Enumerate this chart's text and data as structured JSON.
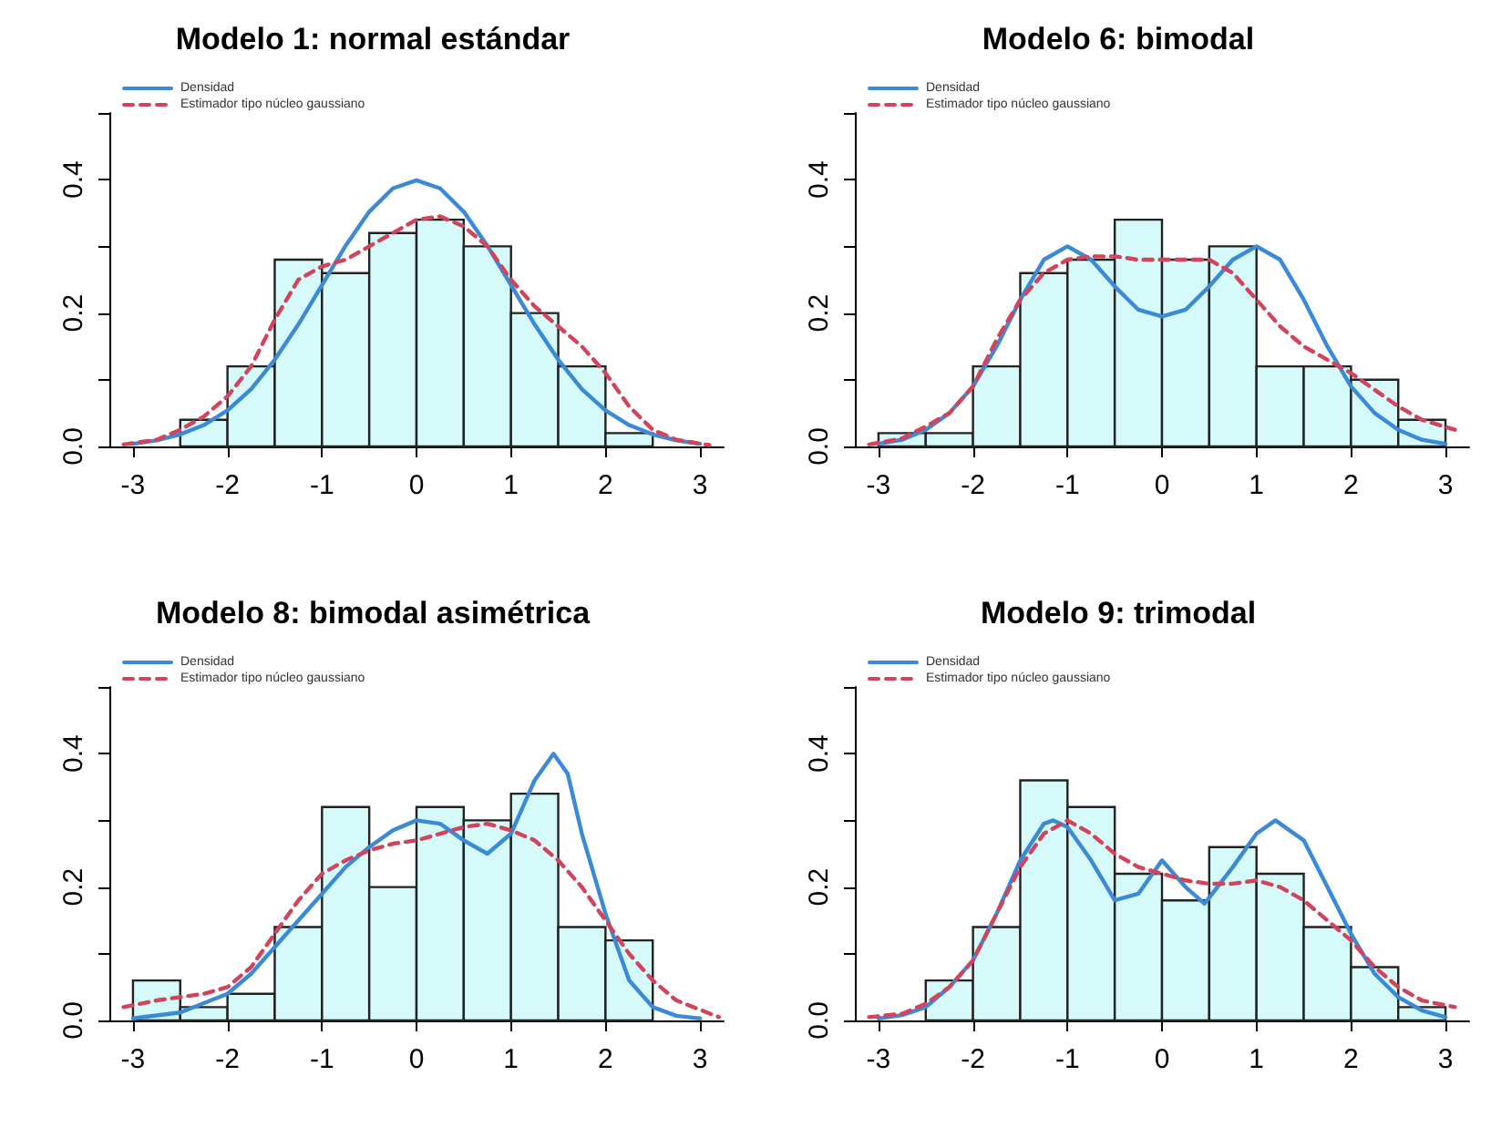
{
  "chart_data": [
    {
      "type": "histogram",
      "title": "Modelo 1: normal estándar",
      "legend": "top left",
      "marker": "none",
      "xlim": [
        -3.25,
        3.25
      ],
      "xticks": [
        -3,
        -2,
        -1,
        0,
        1,
        2,
        3
      ],
      "ylim": [
        0,
        0.5
      ],
      "yticks": [
        {
          "value": 0,
          "label": "0.0"
        },
        {
          "value": 0.1,
          "label": null
        },
        {
          "value": 0.2,
          "label": "0.2"
        },
        {
          "value": 0.3,
          "label": null
        },
        {
          "value": 0.4,
          "label": "0.4"
        },
        {
          "value": 0.5,
          "label": null
        }
      ],
      "series": [
        {
          "type": "histogram",
          "color": "#d6fafa",
          "bins": [
            -2.5,
            -2,
            -1.5,
            -1,
            -0.5,
            0,
            0.5,
            1,
            1.5,
            2,
            2.5
          ],
          "values": [
            0.04,
            0.12,
            0.28,
            0.26,
            0.32,
            0.34,
            0.3,
            0.2,
            0.12,
            0.02
          ]
        },
        {
          "type": "line",
          "name": "Densidad",
          "color": "#3a8ad8",
          "line_style": "solid",
          "x": [
            -3,
            -2.75,
            -2.5,
            -2.25,
            -2,
            -1.75,
            -1.5,
            -1.25,
            -1,
            -0.75,
            -0.5,
            -0.25,
            0,
            0.25,
            0.5,
            0.75,
            1,
            1.25,
            1.5,
            1.75,
            2,
            2.25,
            2.5,
            2.75,
            3
          ],
          "values": [
            0.004,
            0.009,
            0.018,
            0.032,
            0.054,
            0.086,
            0.13,
            0.183,
            0.242,
            0.301,
            0.352,
            0.387,
            0.399,
            0.387,
            0.352,
            0.301,
            0.242,
            0.183,
            0.13,
            0.086,
            0.054,
            0.032,
            0.018,
            0.009,
            0.004
          ]
        },
        {
          "type": "line",
          "name": "Estimador tipo núcleo gaussiano",
          "color": "#d2445c",
          "line_style": "dashed",
          "x": [
            -3.1,
            -2.75,
            -2.5,
            -2.25,
            -2,
            -1.75,
            -1.5,
            -1.25,
            -1,
            -0.75,
            -0.5,
            -0.25,
            0,
            0.25,
            0.5,
            0.75,
            1,
            1.25,
            1.5,
            1.75,
            2,
            2.25,
            2.5,
            2.75,
            3.1
          ],
          "values": [
            0.003,
            0.01,
            0.025,
            0.045,
            0.075,
            0.12,
            0.19,
            0.25,
            0.27,
            0.28,
            0.3,
            0.32,
            0.34,
            0.345,
            0.33,
            0.3,
            0.25,
            0.21,
            0.18,
            0.15,
            0.11,
            0.06,
            0.025,
            0.01,
            0.002
          ]
        }
      ]
    },
    {
      "type": "histogram",
      "title": "Modelo 6: bimodal",
      "legend": "top left",
      "marker": "none",
      "xlim": [
        -3.25,
        3.25
      ],
      "xticks": [
        -3,
        -2,
        -1,
        0,
        1,
        2,
        3
      ],
      "ylim": [
        0,
        0.5
      ],
      "yticks": [
        {
          "value": 0,
          "label": "0.0"
        },
        {
          "value": 0.1,
          "label": null
        },
        {
          "value": 0.2,
          "label": "0.2"
        },
        {
          "value": 0.3,
          "label": null
        },
        {
          "value": 0.4,
          "label": "0.4"
        },
        {
          "value": 0.5,
          "label": null
        }
      ],
      "series": [
        {
          "type": "histogram",
          "color": "#d6fafa",
          "bins": [
            -3,
            -2.5,
            -2,
            -1.5,
            -1,
            -0.5,
            0,
            0.5,
            1,
            1.5,
            2,
            2.5,
            3
          ],
          "values": [
            0.02,
            0.02,
            0.12,
            0.26,
            0.28,
            0.34,
            0.28,
            0.3,
            0.12,
            0.12,
            0.1,
            0.04
          ]
        },
        {
          "type": "line",
          "name": "Densidad",
          "color": "#3a8ad8",
          "line_style": "solid",
          "x": [
            -3,
            -2.75,
            -2.5,
            -2.25,
            -2,
            -1.75,
            -1.5,
            -1.25,
            -1,
            -0.75,
            -0.5,
            -0.25,
            0,
            0.25,
            0.5,
            0.75,
            1,
            1.25,
            1.5,
            1.75,
            2,
            2.25,
            2.5,
            2.75,
            3
          ],
          "values": [
            0.004,
            0.01,
            0.025,
            0.05,
            0.09,
            0.15,
            0.22,
            0.28,
            0.3,
            0.28,
            0.24,
            0.205,
            0.195,
            0.205,
            0.24,
            0.28,
            0.3,
            0.28,
            0.22,
            0.15,
            0.09,
            0.05,
            0.025,
            0.01,
            0.004
          ]
        },
        {
          "type": "line",
          "name": "Estimador tipo núcleo gaussiano",
          "color": "#d2445c",
          "line_style": "dashed",
          "x": [
            -3.1,
            -2.75,
            -2.5,
            -2.25,
            -2,
            -1.75,
            -1.5,
            -1.25,
            -1,
            -0.75,
            -0.5,
            -0.25,
            0,
            0.25,
            0.5,
            0.75,
            1,
            1.25,
            1.5,
            1.75,
            2,
            2.25,
            2.5,
            2.75,
            3.1
          ],
          "values": [
            0.003,
            0.012,
            0.03,
            0.05,
            0.09,
            0.16,
            0.22,
            0.26,
            0.28,
            0.285,
            0.285,
            0.28,
            0.28,
            0.28,
            0.28,
            0.26,
            0.22,
            0.18,
            0.15,
            0.13,
            0.11,
            0.085,
            0.06,
            0.04,
            0.025
          ]
        }
      ]
    },
    {
      "type": "histogram",
      "title": "Modelo 8: bimodal asimétrica",
      "legend": "top left",
      "marker": "none",
      "xlim": [
        -3.25,
        3.25
      ],
      "xticks": [
        -3,
        -2,
        -1,
        0,
        1,
        2,
        3
      ],
      "ylim": [
        0,
        0.5
      ],
      "yticks": [
        {
          "value": 0,
          "label": "0.0"
        },
        {
          "value": 0.1,
          "label": null
        },
        {
          "value": 0.2,
          "label": "0.2"
        },
        {
          "value": 0.3,
          "label": null
        },
        {
          "value": 0.4,
          "label": "0.4"
        },
        {
          "value": 0.5,
          "label": null
        }
      ],
      "series": [
        {
          "type": "histogram",
          "color": "#d6fafa",
          "bins": [
            -3,
            -2.5,
            -2,
            -1.5,
            -1,
            -0.5,
            0,
            0.5,
            1,
            1.5,
            2,
            2.5
          ],
          "values": [
            0.06,
            0.02,
            0.04,
            0.14,
            0.32,
            0.2,
            0.32,
            0.3,
            0.34,
            0.14,
            0.12
          ]
        },
        {
          "type": "line",
          "name": "Densidad",
          "color": "#3a8ad8",
          "line_style": "solid",
          "x": [
            -3,
            -2.5,
            -2,
            -1.75,
            -1.5,
            -1.25,
            -1,
            -0.75,
            -0.5,
            -0.25,
            0,
            0.25,
            0.5,
            0.75,
            1,
            1.25,
            1.45,
            1.6,
            1.75,
            2,
            2.25,
            2.5,
            2.75,
            3
          ],
          "values": [
            0.003,
            0.012,
            0.04,
            0.07,
            0.11,
            0.15,
            0.19,
            0.23,
            0.26,
            0.285,
            0.3,
            0.295,
            0.27,
            0.25,
            0.28,
            0.36,
            0.4,
            0.37,
            0.28,
            0.16,
            0.06,
            0.02,
            0.007,
            0.003
          ]
        },
        {
          "type": "line",
          "name": "Estimador tipo núcleo gaussiano",
          "color": "#d2445c",
          "line_style": "dashed",
          "x": [
            -3.1,
            -2.75,
            -2.5,
            -2.25,
            -2,
            -1.75,
            -1.5,
            -1.25,
            -1,
            -0.75,
            -0.5,
            -0.25,
            0,
            0.25,
            0.5,
            0.75,
            1,
            1.25,
            1.5,
            1.75,
            2,
            2.25,
            2.5,
            2.75,
            3.2
          ],
          "values": [
            0.02,
            0.03,
            0.035,
            0.04,
            0.05,
            0.08,
            0.13,
            0.18,
            0.22,
            0.24,
            0.255,
            0.265,
            0.27,
            0.28,
            0.29,
            0.295,
            0.285,
            0.27,
            0.24,
            0.2,
            0.15,
            0.1,
            0.06,
            0.03,
            0.005
          ]
        }
      ]
    },
    {
      "type": "histogram",
      "title": "Modelo 9: trimodal",
      "legend": "top left",
      "marker": "none",
      "xlim": [
        -3.25,
        3.25
      ],
      "xticks": [
        -3,
        -2,
        -1,
        0,
        1,
        2,
        3
      ],
      "ylim": [
        0,
        0.5
      ],
      "yticks": [
        {
          "value": 0,
          "label": "0.0"
        },
        {
          "value": 0.1,
          "label": null
        },
        {
          "value": 0.2,
          "label": "0.2"
        },
        {
          "value": 0.3,
          "label": null
        },
        {
          "value": 0.4,
          "label": "0.4"
        },
        {
          "value": 0.5,
          "label": null
        }
      ],
      "series": [
        {
          "type": "histogram",
          "color": "#d6fafa",
          "bins": [
            -2.5,
            -2,
            -1.5,
            -1,
            -0.5,
            0,
            0.5,
            1,
            1.5,
            2,
            2.5,
            3
          ],
          "values": [
            0.06,
            0.14,
            0.36,
            0.32,
            0.22,
            0.18,
            0.26,
            0.22,
            0.14,
            0.08,
            0.02
          ]
        },
        {
          "type": "line",
          "name": "Densidad",
          "color": "#3a8ad8",
          "line_style": "solid",
          "x": [
            -3,
            -2.75,
            -2.5,
            -2.25,
            -2,
            -1.75,
            -1.5,
            -1.25,
            -1.15,
            -1,
            -0.75,
            -0.5,
            -0.25,
            0,
            0.25,
            0.45,
            0.75,
            1,
            1.2,
            1.5,
            1.75,
            2,
            2.25,
            2.5,
            2.75,
            3
          ],
          "values": [
            0.003,
            0.008,
            0.02,
            0.05,
            0.09,
            0.16,
            0.24,
            0.295,
            0.3,
            0.29,
            0.24,
            0.18,
            0.19,
            0.24,
            0.2,
            0.175,
            0.23,
            0.28,
            0.3,
            0.27,
            0.2,
            0.13,
            0.07,
            0.035,
            0.015,
            0.005
          ]
        },
        {
          "type": "line",
          "name": "Estimador tipo núcleo gaussiano",
          "color": "#d2445c",
          "line_style": "dashed",
          "x": [
            -3.1,
            -2.75,
            -2.5,
            -2.25,
            -2,
            -1.75,
            -1.5,
            -1.25,
            -1,
            -0.75,
            -0.5,
            -0.25,
            0,
            0.25,
            0.5,
            0.75,
            1,
            1.25,
            1.5,
            1.75,
            2,
            2.25,
            2.5,
            2.75,
            3.1
          ],
          "values": [
            0.005,
            0.01,
            0.025,
            0.05,
            0.09,
            0.16,
            0.23,
            0.28,
            0.3,
            0.28,
            0.25,
            0.23,
            0.22,
            0.21,
            0.205,
            0.205,
            0.21,
            0.2,
            0.18,
            0.15,
            0.12,
            0.08,
            0.05,
            0.03,
            0.02
          ]
        }
      ]
    }
  ]
}
